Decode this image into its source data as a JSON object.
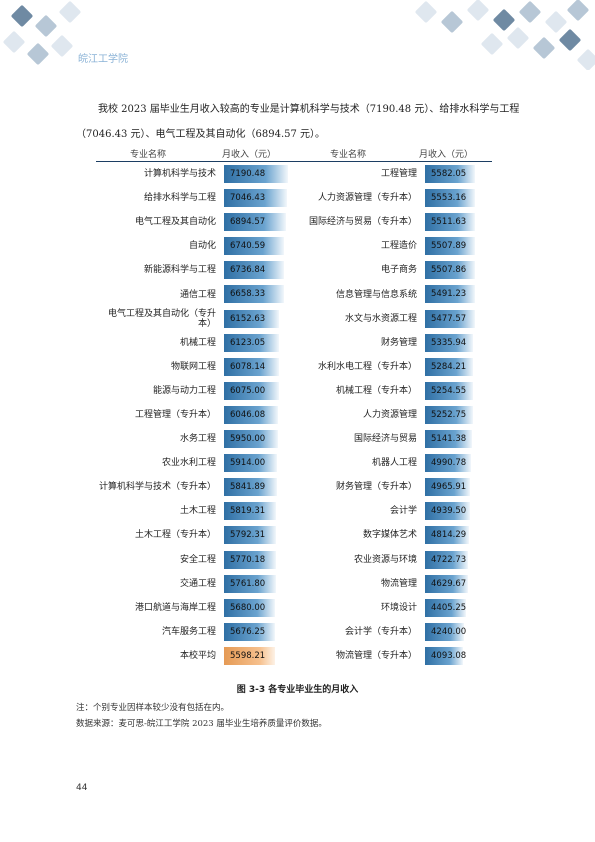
{
  "header": {
    "school_name": "皖江工学院",
    "colors": {
      "tile_light": "#dfe7ef",
      "tile_mid": "#b7c7d6",
      "tile_dark": "#6f8aa3"
    }
  },
  "intro": "我校 2023 届毕业生月收入较高的专业是计算机科学与技术（7190.48 元）、给排水科学与工程（7046.43 元）、电气工程及其自动化（6894.57 元）。",
  "chart_data": {
    "type": "table",
    "columns": [
      "专业名称",
      "月收入（元）",
      "专业名称",
      "月收入（元）"
    ],
    "left": [
      {
        "name": "计算机科学与技术",
        "value": "7190.48"
      },
      {
        "name": "给排水科学与工程",
        "value": "7046.43"
      },
      {
        "name": "电气工程及其自动化",
        "value": "6894.57"
      },
      {
        "name": "自动化",
        "value": "6740.59"
      },
      {
        "name": "新能源科学与工程",
        "value": "6736.84"
      },
      {
        "name": "通信工程",
        "value": "6658.33"
      },
      {
        "name": "电气工程及其自动化（专升本）",
        "value": "6152.63"
      },
      {
        "name": "机械工程",
        "value": "6123.05"
      },
      {
        "name": "物联网工程",
        "value": "6078.14"
      },
      {
        "name": "能源与动力工程",
        "value": "6075.00"
      },
      {
        "name": "工程管理（专升本）",
        "value": "6046.08"
      },
      {
        "name": "水务工程",
        "value": "5950.00"
      },
      {
        "name": "农业水利工程",
        "value": "5914.00"
      },
      {
        "name": "计算机科学与技术（专升本）",
        "value": "5841.89"
      },
      {
        "name": "土木工程",
        "value": "5819.31"
      },
      {
        "name": "土木工程（专升本）",
        "value": "5792.31"
      },
      {
        "name": "安全工程",
        "value": "5770.18"
      },
      {
        "name": "交通工程",
        "value": "5761.80"
      },
      {
        "name": "港口航道与海岸工程",
        "value": "5680.00"
      },
      {
        "name": "汽车服务工程",
        "value": "5676.25"
      },
      {
        "name": "本校平均",
        "value": "5598.21",
        "highlight": true
      }
    ],
    "right": [
      {
        "name": "工程管理",
        "value": "5582.05"
      },
      {
        "name": "人力资源管理（专升本）",
        "value": "5553.16"
      },
      {
        "name": "国际经济与贸易（专升本）",
        "value": "5511.63"
      },
      {
        "name": "工程造价",
        "value": "5507.89"
      },
      {
        "name": "电子商务",
        "value": "5507.86"
      },
      {
        "name": "信息管理与信息系统",
        "value": "5491.23"
      },
      {
        "name": "水文与水资源工程",
        "value": "5477.57"
      },
      {
        "name": "财务管理",
        "value": "5335.94"
      },
      {
        "name": "水利水电工程（专升本）",
        "value": "5284.21"
      },
      {
        "name": "机械工程（专升本）",
        "value": "5254.55"
      },
      {
        "name": "人力资源管理",
        "value": "5252.75"
      },
      {
        "name": "国际经济与贸易",
        "value": "5141.38"
      },
      {
        "name": "机器人工程",
        "value": "4990.78"
      },
      {
        "name": "财务管理（专升本）",
        "value": "4965.91"
      },
      {
        "name": "会计学",
        "value": "4939.50"
      },
      {
        "name": "数字媒体艺术",
        "value": "4814.29"
      },
      {
        "name": "农业资源与环境",
        "value": "4722.73"
      },
      {
        "name": "物流管理",
        "value": "4629.67"
      },
      {
        "name": "环境设计",
        "value": "4405.25"
      },
      {
        "name": "会计学（专升本）",
        "value": "4240.00"
      },
      {
        "name": "物流管理（专升本）",
        "value": "4093.08"
      }
    ],
    "bar_colors": {
      "normal": "#2f6fa4",
      "average": "#e59a55"
    }
  },
  "caption": "图 3-3    各专业毕业生的月收入",
  "note": "注：个别专业因样本较少没有包括在内。",
  "source": "数据来源：麦可思-皖江工学院 2023 届毕业生培养质量评价数据。",
  "page_number": "44"
}
